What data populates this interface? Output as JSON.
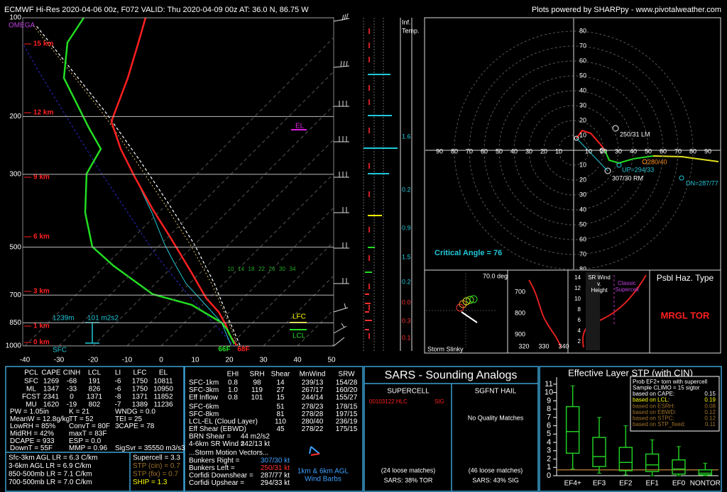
{
  "header": {
    "left": "ECMWF Hi-Res 2020-04-06 00z, F072   VALID: Thu 2020-04-09 00z   AT: 36.0 N, 86.75 W",
    "right": "Plots powered by SHARPpy - www.pivotalweather.com"
  },
  "skewt": {
    "omega": "OMEGA",
    "pressure_ticks": [
      100,
      200,
      300,
      500,
      700,
      850,
      1000
    ],
    "temp_ticks": [
      -40,
      -30,
      -20,
      -10,
      0,
      10,
      20,
      30,
      40,
      50
    ],
    "height_labels": [
      "15 km",
      "12 km",
      "9 km",
      "6 km",
      "3 km",
      "1 km",
      "0 km"
    ],
    "mixing_ratios": [
      "10",
      "14",
      "18",
      "22",
      "26",
      "30",
      "34"
    ],
    "sfc": "SFC",
    "sfc_height": "1239m",
    "srh": "101 m2s2",
    "lfc": "LFC",
    "lcl": "LCL",
    "el": "EL",
    "sfc_dewpoint": "66F",
    "sfc_temp": "68F"
  },
  "inferred_temp": {
    "title": [
      "Inf.",
      "Temp."
    ],
    "labels": [
      "1.6",
      "0.2",
      "0.9",
      "1.5",
      "0.2",
      "0.0",
      "0.3",
      "0.1"
    ]
  },
  "hodograph": {
    "x_ticks": [
      10,
      20,
      30,
      40,
      50,
      60,
      70,
      80,
      90
    ],
    "y_ticks": [
      10,
      20,
      30,
      40,
      50,
      60,
      70,
      80
    ],
    "left_mover": "250/31 LM",
    "mean_wind": "280/40",
    "upshear": "UP=294/33",
    "right_mover": "307/30 RM",
    "downshear": "DN=287/77",
    "critical_angle": "Critical Angle = 76"
  },
  "slinky": {
    "angle": "70.0 deg",
    "title": "Storm Slinky"
  },
  "theta_e": {
    "pressure_labels": [
      "700",
      "800",
      "900"
    ],
    "theta_labels": [
      "320",
      "330",
      "340"
    ]
  },
  "sr_wind": {
    "title": [
      "SR Wind",
      "v.",
      "Height"
    ],
    "heights": [
      "14",
      "12",
      "10",
      "8",
      "6",
      "4",
      "2"
    ],
    "classic": [
      "Classic",
      "Supercell"
    ]
  },
  "hazard": {
    "title": "Psbl Haz. Type",
    "type": "MRGL TOR"
  },
  "thermo": {
    "header": [
      "PCL",
      "CAPE",
      "CINH",
      "LCL",
      "LI",
      "LFC",
      "EL"
    ],
    "rows": [
      [
        "SFC",
        "1269",
        "-68",
        "191",
        "-6",
        "1750",
        "10811"
      ],
      [
        "ML",
        "1347",
        "-33",
        "826",
        "-6",
        "1750",
        "10950"
      ],
      [
        "FCST",
        "2341",
        "0",
        "1371",
        "-8",
        "1371",
        "11852"
      ],
      [
        "MU",
        "1620",
        "-19",
        "802",
        "-7",
        "1389",
        "11236"
      ]
    ],
    "indices": [
      [
        "PW = 1.05in",
        "K = 21",
        "WNDG = 0.0"
      ],
      [
        "MeanW = 12.8g/kg",
        "TT = 52",
        "TEI = 25"
      ],
      [
        "LowRH = 85%",
        "ConvT = 80F",
        "3CAPE = 78"
      ],
      [
        "MidRH = 42%",
        "maxT = 83F"
      ],
      [
        "DCAPE = 933",
        "ESP = 0.0"
      ],
      [
        "DownT = 55F",
        "MMP = 0.96",
        "SigSvr = 35550 m3/s3"
      ]
    ],
    "lapse_rates": [
      "Sfc-3km AGL LR = 6.3 C/km",
      "3-6km AGL LR = 6.9 C/km",
      "850-500mb LR = 7.1 C/km",
      "700-500mb LR = 7.0 C/km"
    ],
    "composite": [
      {
        "text": "Supercell = 3.3",
        "color": "#ffffff"
      },
      {
        "text": "STP (cin) = 0.7",
        "color": "#a0722a"
      },
      {
        "text": "STP (fix) = 0.7",
        "color": "#a0722a"
      },
      {
        "text": "SHIP = 1.3",
        "color": "#ffff00"
      }
    ]
  },
  "kinematics": {
    "header": [
      "EHI",
      "SRH",
      "Shear",
      "MnWind",
      "SRW"
    ],
    "rows": [
      [
        "SFC-1km",
        "0.8",
        "98",
        "14",
        "239/13",
        "154/28"
      ],
      [
        "SFC-3km",
        "1.0",
        "119",
        "27",
        "267/17",
        "160/20"
      ],
      [
        "Eff Inflow",
        "0.8",
        "101",
        "15",
        "244/14",
        "155/27"
      ]
    ],
    "shear_rows": [
      [
        "SFC-6km",
        "51",
        "278/23",
        "178/15"
      ],
      [
        "SFC-8km",
        "81",
        "278/28",
        "197/15"
      ],
      [
        "LCL-EL (Cloud Layer)",
        "110",
        "280/40",
        "236/19"
      ],
      [
        "Eff Shear (EBWD)",
        "45",
        "278/22",
        "175/15"
      ]
    ],
    "other": [
      [
        "BRN Shear =",
        "44 m2/s2"
      ],
      [
        "4-6km SR Wind =",
        "242/13 kt"
      ]
    ],
    "storm_title": "...Storm Motion Vectors...",
    "storm": [
      {
        "label": "Bunkers Right =",
        "value": "307/30 kt",
        "color": "#3ea0ff"
      },
      {
        "label": "Bunkers Left =",
        "value": "250/31 kt",
        "color": "#ff3030"
      },
      {
        "label": "Corfidi Downshear =",
        "value": "287/77 kt",
        "color": "#ffffff"
      },
      {
        "label": "Corfidi Upshear =",
        "value": "294/33 kt",
        "color": "#ffffff"
      }
    ],
    "barbs_caption": [
      "1km & 6km AGL",
      "Wind Barbs"
    ]
  },
  "sars": {
    "title": "SARS - Sounding Analogs",
    "supercell": "SUPERCELL",
    "hail": "SGFNT HAIL",
    "match": "00103122.HLC",
    "match_type": "SIG",
    "hail_none": "No Quality Matches",
    "supercell_loose": "(24 loose matches)",
    "hail_loose": "(46 loose matches)",
    "supercell_result": "SARS: 38% TOR",
    "hail_result": "SARS: 43% SIG"
  },
  "chart_data": {
    "type": "box",
    "title": "Effective Layer STP (with CIN)",
    "categories": [
      "EF4+",
      "EF3",
      "EF2",
      "EF1",
      "EF0",
      "NONTOR"
    ],
    "low": [
      0.8,
      0.3,
      0.1,
      0,
      0,
      0
    ],
    "q1": [
      2.7,
      1.1,
      0.6,
      0.5,
      0.2,
      0.1
    ],
    "median": [
      5.3,
      2.3,
      1.6,
      1.3,
      0.8,
      0.3
    ],
    "q3": [
      8.3,
      4.6,
      3.4,
      2.6,
      1.9,
      0.7
    ],
    "high": [
      10.8,
      7.0,
      6.0,
      4.3,
      3.5,
      1.5
    ],
    "box_color": "#22cc22",
    "median_color": "#ffffff",
    "current_value": 0.7,
    "current_color": "#a0722a",
    "ylim": [
      0,
      11.5
    ],
    "yticks": [
      0,
      1,
      2,
      3,
      4,
      5,
      6,
      7,
      8,
      9,
      10,
      11
    ],
    "prob_box": {
      "lines": [
        "Prob EF2+ torn with supercell",
        "Sample CLIMO = 15 sigtor"
      ],
      "items": [
        {
          "label": "based on CAPE:",
          "value": "0.15",
          "color": "#ffffff"
        },
        {
          "label": "based on LCL:",
          "value": "0.19",
          "color": "#ffff00"
        },
        {
          "label": "based on ESRH:",
          "value": "0.08",
          "color": "#a0722a"
        },
        {
          "label": "based on EBWD:",
          "value": "0.12",
          "color": "#a0722a"
        },
        {
          "label": "based on STPC:",
          "value": "0.12",
          "color": "#a0722a"
        },
        {
          "label": "based on STP_fixed:",
          "value": "0.11",
          "color": "#a0722a"
        }
      ]
    }
  }
}
